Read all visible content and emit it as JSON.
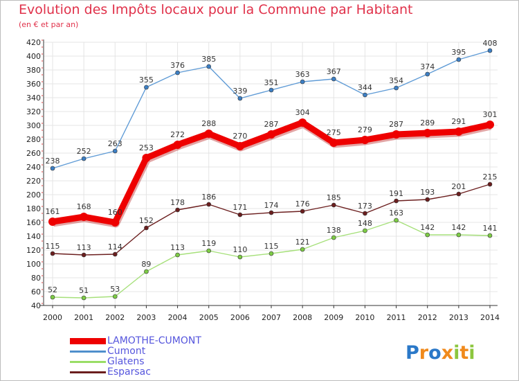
{
  "title": "Evolution des Impôts locaux pour la Commune par Habitant",
  "subtitle": "(en € et par an)",
  "logo_text": "Proxiti",
  "chart_data": {
    "type": "line",
    "title": "Evolution des Impôts locaux pour la Commune par Habitant",
    "subtitle": "(en € et par an)",
    "x": [
      "2000",
      "2001",
      "2002",
      "2003",
      "2004",
      "2005",
      "2006",
      "2007",
      "2008",
      "2009",
      "2010",
      "2011",
      "2012",
      "2013",
      "2014"
    ],
    "ylim": [
      40,
      420
    ],
    "yticks": [
      40,
      60,
      80,
      100,
      120,
      140,
      160,
      180,
      200,
      220,
      240,
      260,
      280,
      300,
      320,
      340,
      360,
      380,
      400,
      420
    ],
    "grid": true,
    "legend_position": "bottom-left",
    "series": [
      {
        "name": "LAMOTHE-CUMONT",
        "color": "#ee0000",
        "values": [
          161,
          168,
          160,
          253,
          272,
          288,
          270,
          287,
          304,
          275,
          279,
          287,
          289,
          291,
          301
        ]
      },
      {
        "name": "Cumont",
        "color": "#4f8fcc",
        "values": [
          238,
          252,
          263,
          355,
          376,
          385,
          339,
          351,
          363,
          367,
          344,
          354,
          374,
          395,
          408
        ]
      },
      {
        "name": "Glatens",
        "color": "#99dd66",
        "values": [
          52,
          51,
          53,
          89,
          113,
          119,
          110,
          115,
          121,
          138,
          148,
          163,
          142,
          142,
          141
        ]
      },
      {
        "name": "Esparsac",
        "color": "#6b1e1e",
        "values": [
          115,
          113,
          114,
          152,
          178,
          186,
          171,
          174,
          176,
          185,
          173,
          191,
          193,
          201,
          215
        ]
      }
    ]
  }
}
